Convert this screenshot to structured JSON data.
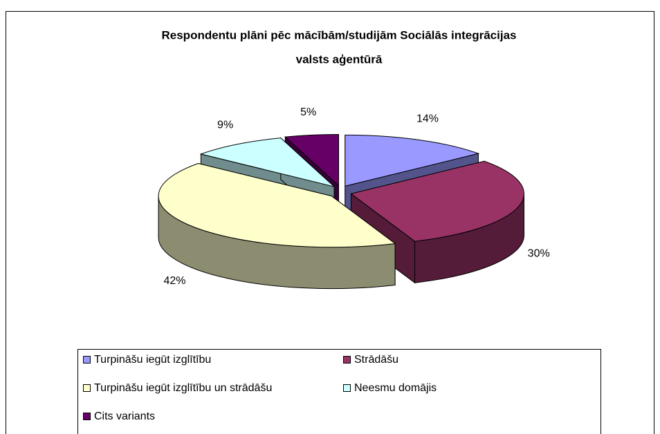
{
  "chart_data": {
    "type": "pie",
    "title": [
      "Respondentu plāni pēc mācībām/studijām Sociālās integrācijas",
      "valsts aģentūrā"
    ],
    "categories": [
      "Turpināšu iegūt izglītību",
      "Strādāšu",
      "Turpināšu iegūt izglītību un strādāšu",
      "Neesmu domājis",
      "Cits variants"
    ],
    "values": [
      14,
      30,
      42,
      9,
      5
    ],
    "value_labels": [
      "14%",
      "30%",
      "42%",
      "9%",
      "5%"
    ],
    "colors": [
      "#9999ff",
      "#993366",
      "#ffffcc",
      "#ccffff",
      "#660066"
    ],
    "legend": "bottom"
  }
}
